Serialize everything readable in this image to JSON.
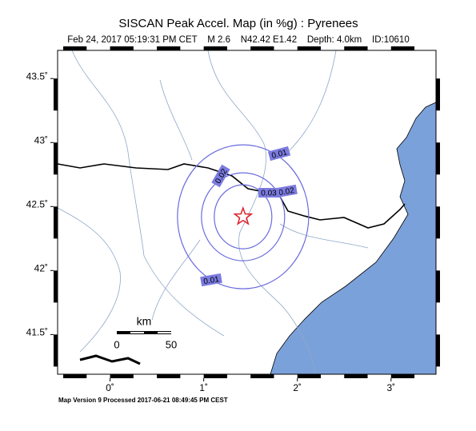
{
  "title": "SISCAN Peak Accel. Map (in %g) : Pyrenees",
  "subtitle": "Feb 24, 2017 05:19:31 PM CET    M 2.6    N42.42 E1.42    Depth: 4.0km    ID:10610",
  "map": {
    "xlim": [
      -0.56,
      3.48
    ],
    "ylim": [
      41.19,
      43.72
    ],
    "xticks": [
      {
        "value": 0,
        "label": "0˚"
      },
      {
        "value": 1,
        "label": "1˚"
      },
      {
        "value": 2,
        "label": "2˚"
      },
      {
        "value": 3,
        "label": "3˚"
      }
    ],
    "yticks": [
      {
        "value": 41.5,
        "label": "41.5˚"
      },
      {
        "value": 42,
        "label": "42˚"
      },
      {
        "value": 42.5,
        "label": "42.5˚"
      },
      {
        "value": 43,
        "label": "43˚"
      },
      {
        "value": 43.5,
        "label": "43.5˚"
      }
    ],
    "epicenter": {
      "lon": 1.42,
      "lat": 42.42
    },
    "contours": [
      0.01,
      0.02,
      0.03
    ],
    "scale_bar": {
      "unit": "km",
      "ticks": [
        0,
        50
      ]
    }
  },
  "footer": "Map Version 9 Processed 2017-06-21 08:49:45 PM CEST"
}
